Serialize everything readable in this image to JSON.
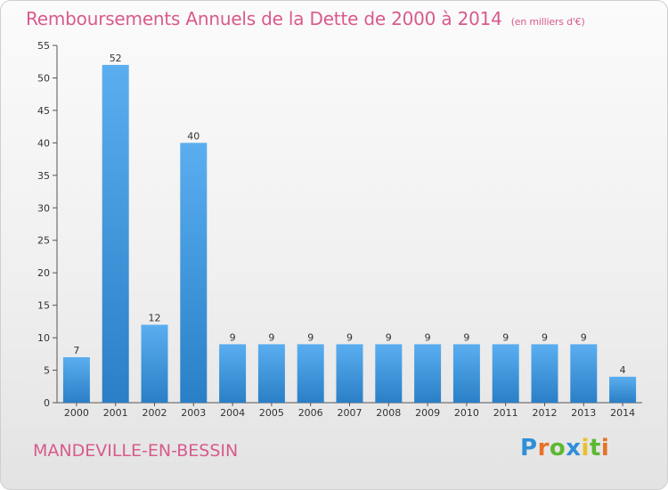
{
  "header": {
    "title": "Remboursements Annuels de la Dette de 2000 à 2014",
    "unit": "(en milliers d'€)"
  },
  "footer": {
    "commune": "MANDEVILLE-EN-BESSIN",
    "brand": "Proxiti"
  },
  "colors": {
    "title": "#d85a8d",
    "bar_top": "#5aaef0",
    "bar_bottom": "#2a7fc6"
  },
  "chart_data": {
    "type": "bar",
    "title": "Remboursements Annuels de la Dette de 2000 à 2014",
    "xlabel": "",
    "ylabel": "",
    "ylim": [
      0,
      55
    ],
    "yticks": [
      0,
      5,
      10,
      15,
      20,
      25,
      30,
      35,
      40,
      45,
      50,
      55
    ],
    "grid": false,
    "categories": [
      "2000",
      "2001",
      "2002",
      "2003",
      "2004",
      "2005",
      "2006",
      "2007",
      "2008",
      "2009",
      "2010",
      "2011",
      "2012",
      "2013",
      "2014"
    ],
    "values": [
      7,
      52,
      12,
      40,
      9,
      9,
      9,
      9,
      9,
      9,
      9,
      9,
      9,
      9,
      4
    ]
  }
}
